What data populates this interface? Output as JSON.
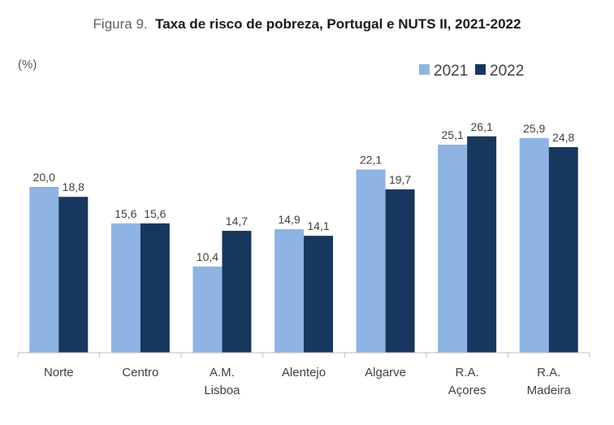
{
  "chart_data": {
    "type": "bar",
    "title_prefix": "Figura 9.",
    "title": "Taxa de risco de pobreza, Portugal e NUTS II, 2021-2022",
    "ylabel": "(%)",
    "xlabel": "",
    "categories": [
      [
        "Norte"
      ],
      [
        "Centro"
      ],
      [
        "A.M.",
        "Lisboa"
      ],
      [
        "Alentejo"
      ],
      [
        "Algarve"
      ],
      [
        "R.A.",
        "Açores"
      ],
      [
        "R.A.",
        "Madeira"
      ]
    ],
    "series": [
      {
        "name": "2021",
        "color": "#8eb4e3",
        "values": [
          20.0,
          15.6,
          10.4,
          14.9,
          22.1,
          25.1,
          25.9
        ],
        "labels": [
          "20,0",
          "15,6",
          "10,4",
          "14,9",
          "22,1",
          "25,1",
          "25,9"
        ]
      },
      {
        "name": "2022",
        "color": "#17375e",
        "values": [
          18.8,
          15.6,
          14.7,
          14.1,
          19.7,
          26.1,
          24.8
        ],
        "labels": [
          "18,8",
          "15,6",
          "14,7",
          "14,1",
          "19,7",
          "26,1",
          "24,8"
        ]
      }
    ],
    "ylim": [
      0,
      30
    ],
    "grid": false,
    "legend": "top-right"
  }
}
